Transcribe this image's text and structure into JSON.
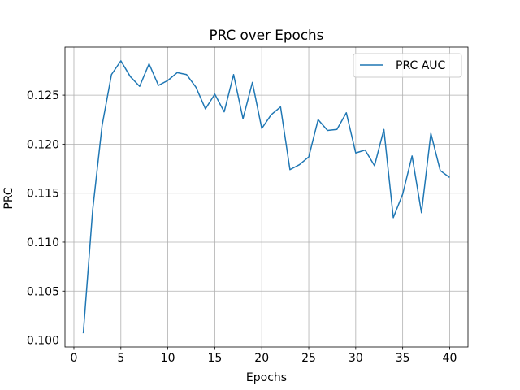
{
  "chart_data": {
    "type": "line",
    "title": "PRC over Epochs",
    "xlabel": "Epochs",
    "ylabel": "PRC",
    "xlim": [
      -0.95,
      41.95
    ],
    "ylim": [
      0.0993,
      0.1299
    ],
    "xticks": [
      0,
      5,
      10,
      15,
      20,
      25,
      30,
      35,
      40
    ],
    "yticks": [
      0.1,
      0.105,
      0.11,
      0.115,
      0.12,
      0.125
    ],
    "ytick_labels": [
      "0.100",
      "0.105",
      "0.110",
      "0.115",
      "0.120",
      "0.125"
    ],
    "grid": true,
    "legend_position": "upper right",
    "series": [
      {
        "name": "PRC AUC",
        "color": "#1f77b4",
        "x": [
          1,
          2,
          3,
          4,
          5,
          6,
          7,
          8,
          9,
          10,
          11,
          12,
          13,
          14,
          15,
          16,
          17,
          18,
          19,
          20,
          21,
          22,
          23,
          24,
          25,
          26,
          27,
          28,
          29,
          30,
          31,
          32,
          33,
          34,
          35,
          36,
          37,
          38,
          39,
          40
        ],
        "y": [
          0.1007,
          0.1133,
          0.1219,
          0.1271,
          0.1285,
          0.1269,
          0.1259,
          0.1282,
          0.126,
          0.1265,
          0.1273,
          0.1271,
          0.1258,
          0.1236,
          0.1251,
          0.1233,
          0.1271,
          0.1226,
          0.1263,
          0.1216,
          0.123,
          0.1238,
          0.1174,
          0.1179,
          0.1187,
          0.1225,
          0.1214,
          0.1215,
          0.1232,
          0.1191,
          0.1194,
          0.1178,
          0.1215,
          0.1125,
          0.1149,
          0.1188,
          0.113,
          0.1211,
          0.1173,
          0.1166
        ]
      }
    ]
  }
}
